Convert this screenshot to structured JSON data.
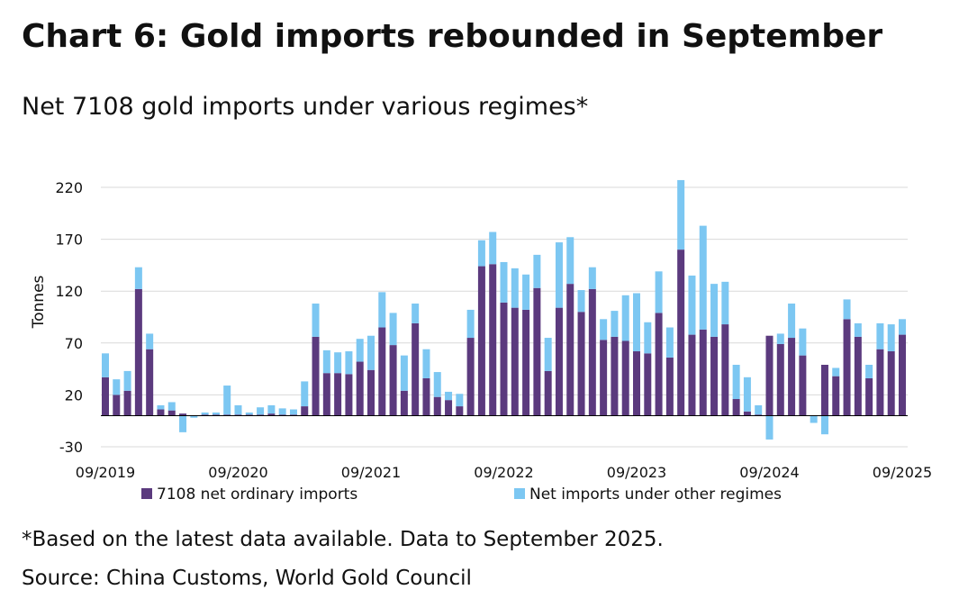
{
  "chart_data": {
    "type": "stacked_bar",
    "title": "Chart 6: Gold imports rebounded in September",
    "subtitle": "Net 7108 gold imports under various regimes*",
    "y_label": "Tonnes",
    "footnote": "*Based on the latest data available. Data to September 2025.",
    "source": "Source: China Customs, World Gold Council",
    "categories": [
      "09/2019",
      null,
      null,
      null,
      null,
      null,
      null,
      null,
      null,
      null,
      null,
      null,
      "09/2020",
      null,
      null,
      null,
      null,
      null,
      null,
      null,
      null,
      null,
      null,
      null,
      "09/2021",
      null,
      null,
      null,
      null,
      null,
      null,
      null,
      null,
      null,
      null,
      null,
      "09/2022",
      null,
      null,
      null,
      null,
      null,
      null,
      null,
      null,
      null,
      null,
      null,
      "09/2023",
      null,
      null,
      null,
      null,
      null,
      null,
      null,
      null,
      null,
      null,
      null,
      "09/2024",
      null,
      null,
      null,
      null,
      null,
      null,
      null,
      null,
      null,
      null,
      null,
      "09/2025"
    ],
    "series": [
      {
        "name": "7108 net ordinary imports",
        "color": "#5b3a7e",
        "values": [
          37,
          20,
          24,
          122,
          64,
          6,
          5,
          2,
          0,
          1,
          1,
          1,
          1,
          1,
          1,
          2,
          1,
          1,
          9,
          76,
          41,
          41,
          40,
          52,
          44,
          85,
          68,
          24,
          89,
          36,
          18,
          15,
          9,
          75,
          144,
          146,
          109,
          104,
          102,
          123,
          43,
          104,
          127,
          100,
          122,
          73,
          76,
          72,
          62,
          60,
          99,
          56,
          160,
          78,
          83,
          76,
          88,
          16,
          4,
          1,
          77,
          69,
          75,
          58,
          0,
          49,
          38,
          93,
          76,
          36,
          64,
          62,
          78
        ]
      },
      {
        "name": "Net imports under other regimes",
        "color": "#7cc7f2",
        "values": [
          23,
          15,
          19,
          21,
          15,
          4,
          8,
          -16,
          -2,
          2,
          2,
          28,
          9,
          2,
          7,
          8,
          6,
          5,
          24,
          32,
          22,
          20,
          22,
          22,
          33,
          34,
          31,
          34,
          19,
          28,
          24,
          8,
          12,
          27,
          25,
          31,
          39,
          38,
          34,
          32,
          32,
          63,
          45,
          21,
          21,
          20,
          25,
          44,
          56,
          30,
          40,
          29,
          67,
          57,
          100,
          51,
          41,
          33,
          33,
          9,
          -23,
          10,
          33,
          26,
          -7,
          -18,
          8,
          19,
          13,
          13,
          25,
          26,
          15
        ]
      }
    ],
    "ylim": [
      -30,
      230
    ],
    "yticks": [
      -30,
      20,
      70,
      120,
      170,
      220
    ],
    "grid": true
  }
}
